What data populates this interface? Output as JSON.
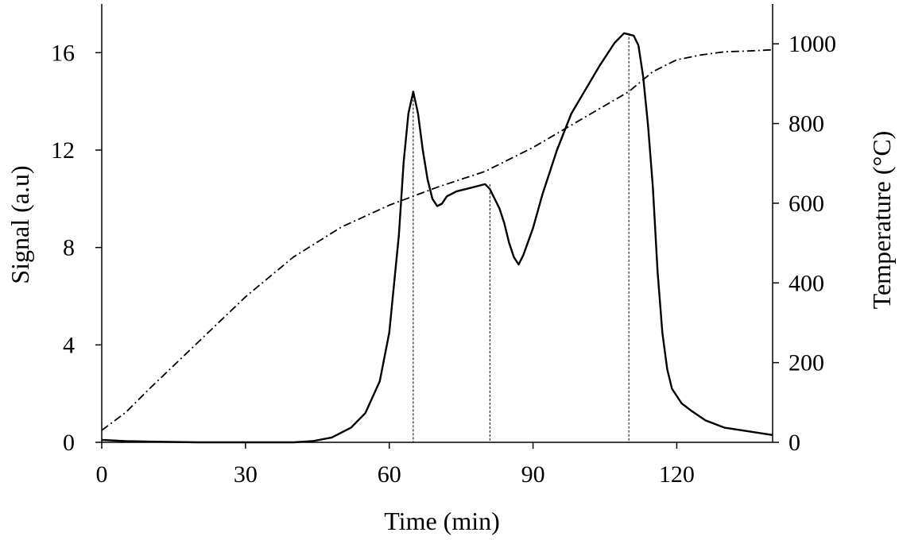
{
  "chart_data": {
    "type": "line",
    "xlabel": "Time (min)",
    "ylabel_left": "Signal (a.u)",
    "ylabel_right": "Temperature  (°C)",
    "xlim": [
      0,
      140
    ],
    "ylim_left": [
      0,
      18
    ],
    "ylim_right": [
      0,
      1100
    ],
    "xticks": [
      0,
      30,
      60,
      90,
      120
    ],
    "yticks_left": [
      0,
      4,
      8,
      12,
      16
    ],
    "yticks_right": [
      0,
      200,
      400,
      600,
      800,
      1000
    ],
    "grid": false,
    "legend": "none",
    "series": [
      {
        "axis": "left",
        "style": "solid",
        "points": [
          [
            0,
            0.1
          ],
          [
            5,
            0.05
          ],
          [
            10,
            0.03
          ],
          [
            20,
            0.0
          ],
          [
            30,
            0.0
          ],
          [
            40,
            0.0
          ],
          [
            44,
            0.05
          ],
          [
            48,
            0.2
          ],
          [
            52,
            0.6
          ],
          [
            55,
            1.2
          ],
          [
            58,
            2.5
          ],
          [
            60,
            4.5
          ],
          [
            62,
            8.5
          ],
          [
            63,
            11.5
          ],
          [
            64,
            13.5
          ],
          [
            65,
            14.4
          ],
          [
            66,
            13.5
          ],
          [
            67,
            12
          ],
          [
            68,
            10.8
          ],
          [
            69,
            10
          ],
          [
            70,
            9.7
          ],
          [
            71,
            9.8
          ],
          [
            72,
            10.1
          ],
          [
            74,
            10.3
          ],
          [
            76,
            10.4
          ],
          [
            78,
            10.5
          ],
          [
            80,
            10.6
          ],
          [
            81,
            10.4
          ],
          [
            82,
            10.0
          ],
          [
            83,
            9.6
          ],
          [
            84,
            9.0
          ],
          [
            85,
            8.2
          ],
          [
            86,
            7.6
          ],
          [
            87,
            7.3
          ],
          [
            88,
            7.7
          ],
          [
            90,
            8.8
          ],
          [
            92,
            10.2
          ],
          [
            95,
            12.0
          ],
          [
            98,
            13.5
          ],
          [
            101,
            14.5
          ],
          [
            104,
            15.5
          ],
          [
            107,
            16.4
          ],
          [
            109,
            16.8
          ],
          [
            111,
            16.7
          ],
          [
            112,
            16.3
          ],
          [
            113,
            15.0
          ],
          [
            114,
            13.0
          ],
          [
            115,
            10.5
          ],
          [
            116,
            7.0
          ],
          [
            117,
            4.5
          ],
          [
            118,
            3.0
          ],
          [
            119,
            2.2
          ],
          [
            121,
            1.6
          ],
          [
            123,
            1.3
          ],
          [
            126,
            0.9
          ],
          [
            130,
            0.6
          ],
          [
            135,
            0.45
          ],
          [
            140,
            0.3
          ]
        ]
      },
      {
        "axis": "right",
        "style": "dash-dot",
        "points": [
          [
            0,
            30
          ],
          [
            5,
            75
          ],
          [
            10,
            135
          ],
          [
            20,
            250
          ],
          [
            30,
            365
          ],
          [
            40,
            465
          ],
          [
            50,
            540
          ],
          [
            60,
            595
          ],
          [
            70,
            640
          ],
          [
            80,
            680
          ],
          [
            90,
            740
          ],
          [
            100,
            810
          ],
          [
            110,
            880
          ],
          [
            115,
            930
          ],
          [
            120,
            960
          ],
          [
            125,
            972
          ],
          [
            130,
            980
          ],
          [
            135,
            982
          ],
          [
            140,
            985
          ]
        ]
      }
    ],
    "markers": [
      {
        "x": 65,
        "y": 14.4
      },
      {
        "x": 81,
        "y": 10.6
      },
      {
        "x": 110,
        "y": 16.8
      }
    ]
  }
}
